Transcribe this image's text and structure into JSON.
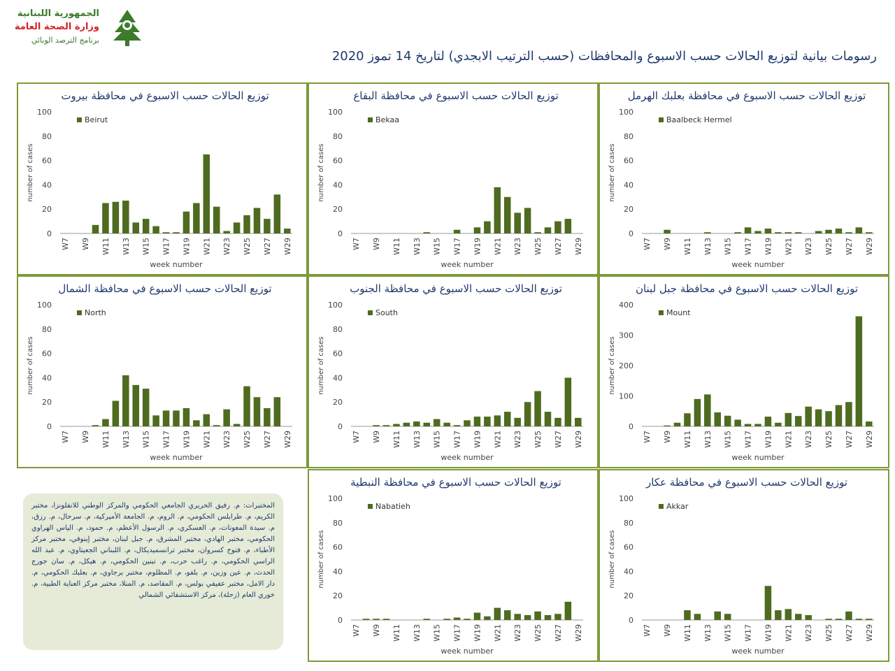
{
  "header": {
    "logo_lines": [
      "الجمهورية اللبنانية",
      "وزارة الصحة العامة",
      "برنامج الترصد الوبائي"
    ],
    "title": "رسومات بيانية لتوزيع الحالات حسب الاسبوع والمحافظات (حسب الترتيب الابجدي) لتاريخ 14 تموز 2020"
  },
  "note": "المختبرات: م. رفيق الحريري الجامعي الحكومي والمركز الوطني للانفلونزا، مختبر الكريم، م. طرابلس الحكومي، م. الروم، م. الجامعة الأميركية، م. سرحال، م. رزق، م. سيدة المعونات، م. العسكري، م. الرسول الأعظم، م. حمود، م. الياس الهراوي الحكومي، مختبر الهادي، مختبر المشرق، م. جبل لبنان، مختبر إينوفي، مختبر مركز الأطباء، م. فتوح كسروان، مختبر ترانسميديكال، م. اللبناني الجعيتاوي، م. عبد الله الراسي الحكومي، م. راغب حرب، م. تبنين الحكومي، م. هيكل، م. سان جورج الحدث، م. عين وزين، م. بلفو، م. المظلوم، مختبر برجاوي، م. بعلبك الحكومي، م. دار الامل، مختبر عفيفي بولس، م. المقاصد، م. المنلا، مختبر مركز العناية الطبية، م. خوري العام (زحلة)، مركز الاستشفائي الشمالي",
  "chart_data": [
    {
      "type": "bar",
      "title": "توزيع الحالات حسب الاسبوع في محافظة بيروت",
      "x_label": "week number",
      "y_label": "number of cases",
      "grid": false,
      "categories": [
        "W7",
        null,
        "W9",
        null,
        "W11",
        null,
        "W13",
        null,
        "W15",
        null,
        "W17",
        null,
        "W19",
        null,
        "W21",
        null,
        "W23",
        null,
        "W25",
        null,
        "W27",
        null,
        "W29"
      ],
      "series": [
        {
          "name": "Beirut",
          "color": "#4e6b1f",
          "values": [
            0,
            0,
            0,
            7,
            25,
            26,
            27,
            9,
            12,
            6,
            1,
            1,
            18,
            25,
            65,
            22,
            2,
            9,
            15,
            21,
            12,
            32,
            4
          ]
        }
      ],
      "ylim": [
        0,
        100
      ],
      "yticks": [
        0,
        20,
        40,
        60,
        80,
        100
      ]
    },
    {
      "type": "bar",
      "title": "توزيع الحالات حسب الاسبوع في محافظة البقاع",
      "x_label": "week number",
      "y_label": "number of cases",
      "grid": false,
      "categories": [
        "W7",
        null,
        "W9",
        null,
        "W11",
        null,
        "W13",
        null,
        "W15",
        null,
        "W17",
        null,
        "W19",
        null,
        "W21",
        null,
        "W23",
        null,
        "W25",
        null,
        "W27",
        null,
        "W29"
      ],
      "series": [
        {
          "name": "Bekaa",
          "color": "#4e6b1f",
          "values": [
            0,
            0,
            0,
            0,
            0,
            0,
            0,
            1,
            0,
            0,
            3,
            0,
            5,
            10,
            38,
            30,
            17,
            21,
            1,
            5,
            10,
            12,
            0
          ]
        }
      ],
      "ylim": [
        0,
        100
      ],
      "yticks": [
        0,
        20,
        40,
        60,
        80,
        100
      ]
    },
    {
      "type": "bar",
      "title": "توزيع الحالات حسب الاسبوع في محافظة بعلبك الهرمل",
      "x_label": "week number",
      "y_label": "number of cases",
      "grid": false,
      "categories": [
        "W7",
        null,
        "W9",
        null,
        "W11",
        null,
        "W13",
        null,
        "W15",
        null,
        "W17",
        null,
        "W19",
        null,
        "W21",
        null,
        "W23",
        null,
        "W25",
        null,
        "W27",
        null,
        "W29"
      ],
      "series": [
        {
          "name": "Baalbeck Hermel",
          "color": "#4e6b1f",
          "values": [
            0,
            0,
            3,
            0,
            0,
            0,
            1,
            0,
            0,
            1,
            5,
            2,
            4,
            1,
            1,
            1,
            0,
            2,
            3,
            4,
            1,
            5,
            1
          ]
        }
      ],
      "ylim": [
        0,
        100
      ],
      "yticks": [
        0,
        20,
        40,
        60,
        80,
        100
      ]
    },
    {
      "type": "bar",
      "title": "توزيع الحالات حسب الاسبوع في محافظة الشمال",
      "x_label": "week number",
      "y_label": "number of cases",
      "grid": false,
      "categories": [
        "W7",
        null,
        "W9",
        null,
        "W11",
        null,
        "W13",
        null,
        "W15",
        null,
        "W17",
        null,
        "W19",
        null,
        "W21",
        null,
        "W23",
        null,
        "W25",
        null,
        "W27",
        null,
        "W29"
      ],
      "series": [
        {
          "name": "North",
          "color": "#4e6b1f",
          "values": [
            0,
            0,
            0,
            1,
            6,
            21,
            42,
            34,
            31,
            9,
            13,
            13,
            15,
            5,
            10,
            1,
            14,
            2,
            33,
            24,
            15,
            24,
            0
          ]
        }
      ],
      "ylim": [
        0,
        100
      ],
      "yticks": [
        0,
        20,
        40,
        60,
        80,
        100
      ]
    },
    {
      "type": "bar",
      "title": "توزيع الحالات حسب الاسبوع في محافظة الجنوب",
      "x_label": "week number",
      "y_label": "number of cases",
      "grid": false,
      "categories": [
        "W7",
        null,
        "W9",
        null,
        "W11",
        null,
        "W13",
        null,
        "W15",
        null,
        "W17",
        null,
        "W19",
        null,
        "W21",
        null,
        "W23",
        null,
        "W25",
        null,
        "W27",
        null,
        "W29"
      ],
      "series": [
        {
          "name": "South",
          "color": "#4e6b1f",
          "values": [
            0,
            0,
            1,
            1,
            2,
            3,
            4,
            3,
            6,
            3,
            1,
            5,
            8,
            8,
            9,
            12,
            7,
            20,
            29,
            12,
            7,
            40,
            7
          ]
        }
      ],
      "ylim": [
        0,
        100
      ],
      "yticks": [
        0,
        20,
        40,
        60,
        80,
        100
      ]
    },
    {
      "type": "bar",
      "title": "توزيع الحالات حسب الاسبوع في محافظة جبل لبنان",
      "x_label": "week number",
      "y_label": "number of cases",
      "grid": false,
      "categories": [
        "W7",
        null,
        "W9",
        null,
        "W11",
        null,
        "W13",
        null,
        "W15",
        null,
        "W17",
        null,
        "W19",
        null,
        "W21",
        null,
        "W23",
        null,
        "W25",
        null,
        "W27",
        null,
        "W29"
      ],
      "series": [
        {
          "name": "Mount",
          "color": "#4e6b1f",
          "values": [
            0,
            0,
            3,
            12,
            43,
            90,
            105,
            46,
            35,
            22,
            8,
            8,
            32,
            12,
            44,
            34,
            65,
            56,
            50,
            70,
            80,
            362,
            16
          ]
        }
      ],
      "ylim": [
        0,
        400
      ],
      "yticks": [
        0,
        100,
        200,
        300,
        400
      ]
    },
    {
      "type": "bar",
      "title": "توزيع الحالات حسب الاسبوع في محافظة النبطية",
      "x_label": "week number",
      "y_label": "number of cases",
      "grid": false,
      "categories": [
        "W7",
        null,
        "W9",
        null,
        "W11",
        null,
        "W13",
        null,
        "W15",
        null,
        "W17",
        null,
        "W19",
        null,
        "W21",
        null,
        "W23",
        null,
        "W25",
        null,
        "W27",
        null,
        "W29"
      ],
      "series": [
        {
          "name": "Nabatieh",
          "color": "#4e6b1f",
          "values": [
            0,
            1,
            1,
            1,
            0,
            0,
            0,
            1,
            0,
            1,
            2,
            1,
            6,
            3,
            10,
            8,
            5,
            4,
            7,
            4,
            5,
            15,
            0
          ]
        }
      ],
      "ylim": [
        0,
        100
      ],
      "yticks": [
        0,
        20,
        40,
        60,
        80,
        100
      ]
    },
    {
      "type": "bar",
      "title": "توزيع الحالات حسب الاسبوع في محافظة عكار",
      "x_label": "week number",
      "y_label": "number of cases",
      "grid": false,
      "categories": [
        "W7",
        null,
        "W9",
        null,
        "W11",
        null,
        "W13",
        null,
        "W15",
        null,
        "W17",
        null,
        "W19",
        null,
        "W21",
        null,
        "W23",
        null,
        "W25",
        null,
        "W27",
        null,
        "W29"
      ],
      "series": [
        {
          "name": "Akkar",
          "color": "#4e6b1f",
          "values": [
            0,
            0,
            0,
            0,
            8,
            5,
            0,
            7,
            5,
            0,
            0,
            0,
            28,
            8,
            9,
            5,
            4,
            0,
            1,
            1,
            7,
            1,
            1
          ]
        }
      ],
      "ylim": [
        0,
        100
      ],
      "yticks": [
        0,
        20,
        40,
        60,
        80,
        100
      ]
    }
  ]
}
